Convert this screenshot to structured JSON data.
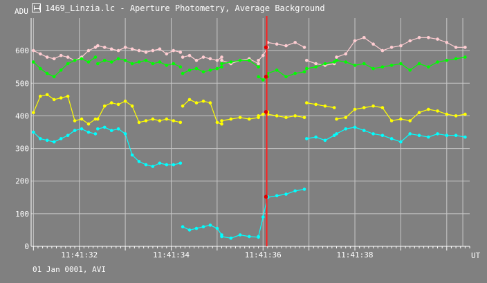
{
  "window": {
    "title": "1469_Linzia.lc - Aperture Photometry, Average Background",
    "footer": "01 Jan 0001, AVI"
  },
  "colors": {
    "background": "#808080",
    "grid": "#c8c8c8",
    "cursor": "#ff2020",
    "marker": "#e00000",
    "series": [
      "#ffcdd2",
      "#00ff00",
      "#ffff00",
      "#00ffff"
    ]
  },
  "chart_data": {
    "type": "line",
    "ylabel": "ADU",
    "xlabel": "UT",
    "ylim": [
      0,
      700
    ],
    "yticks": [
      0,
      100,
      200,
      300,
      400,
      500,
      600
    ],
    "xticks": [
      "11:41:32",
      "11:41:34",
      "11:41:36",
      "11:41:38"
    ],
    "x_label_pos": [
      1,
      3,
      5,
      7
    ],
    "grid": true,
    "xrange_sec": [
      -0.05,
      9.5
    ],
    "vertical_grid_sec": [
      0,
      1,
      2,
      3,
      4,
      5,
      6,
      7,
      8,
      9,
      9.35
    ],
    "cursor_sec": 5.08,
    "cursor_values": [
      610,
      520,
      412,
      152
    ],
    "series": [
      {
        "color": "#ffcdd2",
        "segments": [
          {
            "x": [
              0.0,
              0.15,
              0.3,
              0.45,
              0.6,
              0.75,
              0.9,
              1.05,
              1.2,
              1.35
            ],
            "y": [
              600,
              590,
              580,
              575,
              585,
              580,
              570,
              580,
              600,
              610
            ]
          },
          {
            "x": [
              1.4,
              1.55,
              1.7,
              1.85,
              2.0,
              2.15,
              2.3,
              2.45,
              2.6,
              2.75,
              2.9,
              3.05,
              3.2
            ],
            "y": [
              615,
              610,
              605,
              600,
              610,
              605,
              600,
              595,
              600,
              605,
              590,
              600,
              595
            ]
          },
          {
            "x": [
              3.25,
              3.4,
              3.55,
              3.7,
              3.85,
              4.0,
              4.1
            ],
            "y": [
              580,
              585,
              570,
              580,
              575,
              570,
              580
            ]
          },
          {
            "x": [
              4.1,
              4.3,
              4.5,
              4.7,
              4.9
            ],
            "y": [
              570,
              560,
              570,
              575,
              560
            ]
          },
          {
            "x": [
              4.9,
              5.0,
              5.1
            ],
            "y": [
              570,
              585,
              610
            ]
          },
          {
            "x": [
              5.1,
              5.3,
              5.5,
              5.7,
              5.9
            ],
            "y": [
              625,
              620,
              615,
              625,
              610
            ]
          },
          {
            "x": [
              5.95,
              6.15,
              6.35,
              6.55
            ],
            "y": [
              570,
              560,
              555,
              560
            ]
          },
          {
            "x": [
              6.6,
              6.8,
              7.0,
              7.2,
              7.4,
              7.6,
              7.8,
              8.0,
              8.2,
              8.4,
              8.6,
              8.8,
              9.0,
              9.2,
              9.4
            ],
            "y": [
              580,
              590,
              630,
              640,
              620,
              600,
              610,
              615,
              630,
              640,
              640,
              635,
              625,
              610,
              610
            ]
          }
        ]
      },
      {
        "color": "#00ff00",
        "segments": [
          {
            "x": [
              0.0,
              0.15,
              0.3,
              0.45,
              0.6,
              0.75,
              0.9,
              1.05,
              1.2,
              1.35
            ],
            "y": [
              565,
              545,
              530,
              520,
              540,
              560,
              570,
              575,
              565,
              580
            ]
          },
          {
            "x": [
              1.4,
              1.55,
              1.7,
              1.85,
              2.0,
              2.15,
              2.3,
              2.45,
              2.6,
              2.75,
              2.9,
              3.05,
              3.2
            ],
            "y": [
              560,
              570,
              565,
              575,
              570,
              560,
              565,
              570,
              560,
              565,
              555,
              560,
              550
            ]
          },
          {
            "x": [
              3.25,
              3.4,
              3.55,
              3.7,
              3.85,
              4.0,
              4.1
            ],
            "y": [
              530,
              540,
              545,
              535,
              540,
              545,
              550
            ]
          },
          {
            "x": [
              4.1,
              4.3,
              4.5,
              4.7,
              4.9
            ],
            "y": [
              560,
              565,
              570,
              570,
              550
            ]
          },
          {
            "x": [
              4.9,
              5.0,
              5.1
            ],
            "y": [
              520,
              510,
              520
            ]
          },
          {
            "x": [
              5.1,
              5.3,
              5.5,
              5.7,
              5.9
            ],
            "y": [
              530,
              540,
              520,
              530,
              535
            ]
          },
          {
            "x": [
              5.95,
              6.15,
              6.35,
              6.55
            ],
            "y": [
              545,
              550,
              560,
              565
            ]
          },
          {
            "x": [
              6.6,
              6.8,
              7.0,
              7.2,
              7.4,
              7.6,
              7.8,
              8.0,
              8.2,
              8.4,
              8.6,
              8.8,
              9.0,
              9.2,
              9.4
            ],
            "y": [
              570,
              565,
              555,
              560,
              545,
              550,
              555,
              560,
              540,
              560,
              550,
              565,
              570,
              575,
              580
            ]
          }
        ]
      },
      {
        "color": "#ffff00",
        "segments": [
          {
            "x": [
              0.0,
              0.15,
              0.3,
              0.45,
              0.6,
              0.75,
              0.9,
              1.05,
              1.2,
              1.35
            ],
            "y": [
              410,
              460,
              465,
              450,
              455,
              460,
              385,
              390,
              375,
              390
            ]
          },
          {
            "x": [
              1.4,
              1.55,
              1.7,
              1.85,
              2.0,
              2.15,
              2.3,
              2.45,
              2.6,
              2.75,
              2.9,
              3.05,
              3.2
            ],
            "y": [
              390,
              430,
              440,
              435,
              445,
              430,
              380,
              385,
              390,
              385,
              390,
              385,
              380
            ]
          },
          {
            "x": [
              3.25,
              3.4,
              3.55,
              3.7,
              3.85,
              4.0,
              4.1
            ],
            "y": [
              430,
              450,
              440,
              445,
              440,
              380,
              375
            ]
          },
          {
            "x": [
              4.1,
              4.3,
              4.5,
              4.7,
              4.9
            ],
            "y": [
              385,
              390,
              395,
              390,
              395
            ]
          },
          {
            "x": [
              4.9,
              5.0,
              5.1
            ],
            "y": [
              400,
              405,
              412
            ]
          },
          {
            "x": [
              5.1,
              5.3,
              5.5,
              5.7,
              5.9
            ],
            "y": [
              405,
              400,
              395,
              400,
              395
            ]
          },
          {
            "x": [
              5.95,
              6.15,
              6.35,
              6.55
            ],
            "y": [
              440,
              435,
              430,
              425
            ]
          },
          {
            "x": [
              6.6,
              6.8,
              7.0,
              7.2,
              7.4,
              7.6,
              7.8,
              8.0,
              8.2,
              8.4,
              8.6,
              8.8,
              9.0,
              9.2,
              9.4
            ],
            "y": [
              390,
              395,
              420,
              425,
              430,
              425,
              385,
              390,
              385,
              410,
              420,
              415,
              405,
              400,
              405
            ]
          }
        ]
      },
      {
        "color": "#00ffff",
        "segments": [
          {
            "x": [
              0.0,
              0.15,
              0.3,
              0.45,
              0.6,
              0.75,
              0.9,
              1.05,
              1.2,
              1.35
            ],
            "y": [
              350,
              330,
              325,
              320,
              330,
              340,
              355,
              360,
              350,
              345
            ]
          },
          {
            "x": [
              1.4,
              1.55,
              1.7,
              1.85,
              2.0,
              2.15,
              2.3,
              2.45,
              2.6,
              2.75,
              2.9,
              3.05,
              3.2
            ],
            "y": [
              360,
              365,
              355,
              360,
              345,
              280,
              260,
              250,
              245,
              255,
              250,
              250,
              255
            ]
          },
          {
            "x": [
              3.25,
              3.4,
              3.55,
              3.7,
              3.85,
              4.0,
              4.1
            ],
            "y": [
              60,
              50,
              55,
              60,
              65,
              55,
              35
            ]
          },
          {
            "x": [
              4.1,
              4.3,
              4.5,
              4.7,
              4.9
            ],
            "y": [
              30,
              25,
              35,
              30,
              28
            ]
          },
          {
            "x": [
              4.9,
              5.0,
              5.1
            ],
            "y": [
              30,
              90,
              152
            ]
          },
          {
            "x": [
              5.1,
              5.3,
              5.5,
              5.7,
              5.9
            ],
            "y": [
              150,
              155,
              160,
              170,
              175
            ]
          },
          {
            "x": [
              5.95,
              6.15,
              6.35,
              6.55
            ],
            "y": [
              330,
              335,
              325,
              340
            ]
          },
          {
            "x": [
              6.6,
              6.8,
              7.0,
              7.2,
              7.4,
              7.6,
              7.8,
              8.0,
              8.2,
              8.4,
              8.6,
              8.8,
              9.0,
              9.2,
              9.4
            ],
            "y": [
              345,
              360,
              365,
              355,
              345,
              340,
              330,
              320,
              345,
              340,
              335,
              345,
              340,
              340,
              335
            ]
          }
        ]
      }
    ]
  }
}
